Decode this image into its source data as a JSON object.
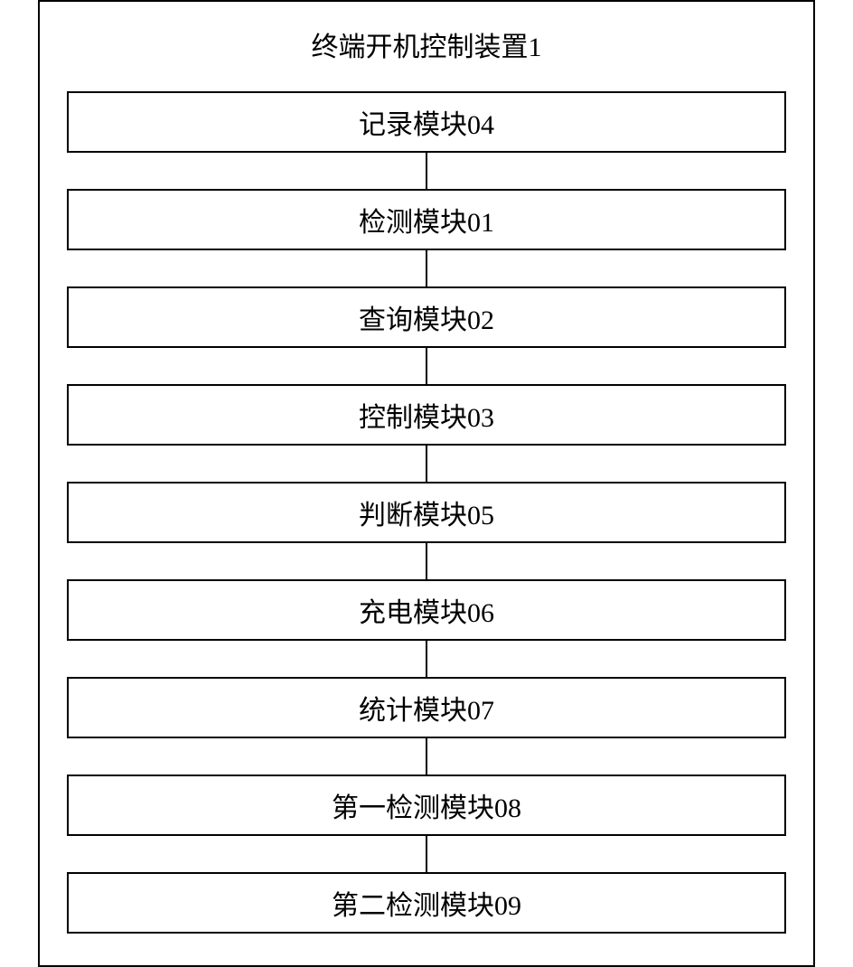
{
  "diagram": {
    "title": "终端开机控制装置1",
    "modules": [
      {
        "label": "记录模块04"
      },
      {
        "label": "检测模块01"
      },
      {
        "label": "查询模块02"
      },
      {
        "label": "控制模块03"
      },
      {
        "label": "判断模块05"
      },
      {
        "label": "充电模块06"
      },
      {
        "label": "统计模块07"
      },
      {
        "label": "第一检测模块08"
      },
      {
        "label": "第二检测模块09"
      }
    ],
    "styling": {
      "container_border_color": "#000000",
      "container_border_width": 2,
      "box_border_color": "#000000",
      "box_border_width": 2,
      "connector_color": "#000000",
      "connector_width": 2,
      "connector_height": 40,
      "background_color": "#ffffff",
      "text_color": "#000000",
      "title_fontsize": 30,
      "module_fontsize": 30,
      "font_family": "SimSun",
      "container_width": 860,
      "box_padding": 10
    }
  }
}
